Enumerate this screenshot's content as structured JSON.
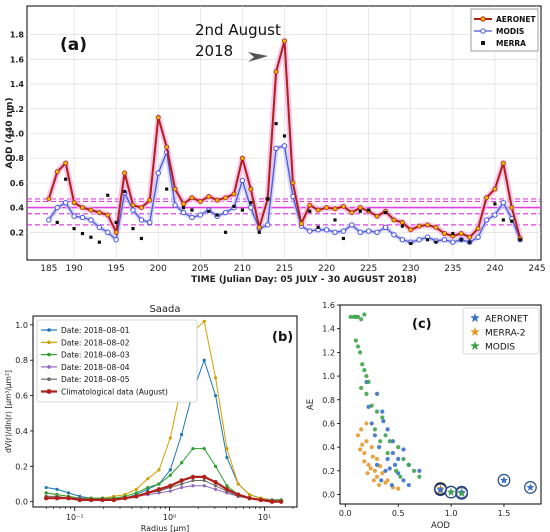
{
  "chart_data": [
    {
      "type": "line",
      "panel_label": "(a)",
      "annotation": [
        "2nd August",
        "2018"
      ],
      "ylabel": "AOD (440 nm)",
      "xlabel": "TIME (Julian Day: 05 JULY - 30 AUGUST 2018)",
      "xlim": [
        185,
        245
      ],
      "ylim": [
        0,
        2.0
      ],
      "x_ticks": [
        "190",
        "195",
        "200",
        "205",
        "210",
        "215",
        "220",
        "225",
        "230",
        "235",
        "240",
        "245"
      ],
      "y_ticks": [
        "0.2",
        "0.4",
        "0.6",
        "0.8",
        "1.0",
        "1.2",
        "1.4",
        "1.6",
        "1.8"
      ],
      "legend": [
        "AERONET",
        "MODIS",
        "MERRA"
      ],
      "legend_position": "top-right",
      "colors": {
        "aeronet": "#b0201a",
        "modis": "#4a55e0",
        "merra": "#111111",
        "band": "#e040e0"
      },
      "x": [
        187,
        188,
        189,
        190,
        191,
        192,
        193,
        194,
        195,
        196,
        197,
        198,
        199,
        200,
        201,
        202,
        203,
        204,
        205,
        206,
        207,
        208,
        209,
        210,
        211,
        212,
        213,
        214,
        215,
        216,
        217,
        218,
        219,
        220,
        221,
        222,
        223,
        224,
        225,
        226,
        227,
        228,
        229,
        230,
        231,
        232,
        233,
        234,
        235,
        236,
        237,
        238,
        239,
        240,
        241,
        242,
        243
      ],
      "series": [
        {
          "name": "AERONET",
          "values": [
            0.47,
            0.69,
            0.76,
            0.44,
            0.4,
            0.38,
            0.36,
            0.34,
            0.2,
            0.68,
            0.42,
            0.4,
            0.46,
            1.13,
            0.89,
            0.55,
            0.43,
            0.48,
            0.45,
            0.49,
            0.46,
            0.48,
            0.51,
            0.8,
            0.55,
            0.24,
            0.47,
            1.5,
            1.75,
            0.6,
            0.27,
            0.42,
            0.38,
            0.4,
            0.39,
            0.41,
            0.36,
            0.4,
            0.37,
            0.33,
            0.37,
            0.3,
            0.28,
            0.22,
            0.25,
            0.26,
            0.24,
            0.19,
            0.17,
            0.19,
            0.16,
            0.23,
            0.48,
            0.55,
            0.76,
            0.4,
            0.15
          ]
        },
        {
          "name": "MODIS",
          "values": [
            0.3,
            0.4,
            0.44,
            0.33,
            0.32,
            0.3,
            0.24,
            0.2,
            0.14,
            0.52,
            0.38,
            0.3,
            0.28,
            0.68,
            0.85,
            0.42,
            0.36,
            0.32,
            0.34,
            0.38,
            0.33,
            0.36,
            0.4,
            0.62,
            0.4,
            0.23,
            0.26,
            0.88,
            0.9,
            0.49,
            0.25,
            0.21,
            0.22,
            0.22,
            0.2,
            0.21,
            0.26,
            0.2,
            0.21,
            0.2,
            0.24,
            0.18,
            0.14,
            0.12,
            0.14,
            0.16,
            0.13,
            0.14,
            0.12,
            0.14,
            0.12,
            0.16,
            0.3,
            0.34,
            0.44,
            0.31,
            0.14
          ]
        },
        {
          "name": "MERRA",
          "values": [
            null,
            0.28,
            0.63,
            0.23,
            0.19,
            0.16,
            0.12,
            0.5,
            0.28,
            0.53,
            0.23,
            0.15,
            null,
            null,
            0.55,
            null,
            0.4,
            0.38,
            null,
            0.37,
            0.34,
            0.2,
            0.41,
            0.38,
            0.44,
            0.2,
            0.47,
            1.08,
            0.98,
            null,
            null,
            0.37,
            0.24,
            null,
            0.3,
            0.15,
            null,
            0.37,
            0.38,
            null,
            0.36,
            null,
            0.25,
            0.11,
            null,
            0.14,
            0.12,
            null,
            0.19,
            0.14,
            0.12,
            null,
            null,
            0.43,
            0.3,
            0.29,
            0.14
          ]
        }
      ],
      "mean_lines": {
        "solid": 0.4,
        "dashed": [
          0.45,
          0.35,
          0.26,
          0.47
        ]
      }
    },
    {
      "type": "line",
      "title": "Saada",
      "panel_label": "(b)",
      "xlabel": "Radius [μm]",
      "ylabel": "dV(r)/dln(r) [μm³/μm²]",
      "xscale": "log",
      "xlim": [
        0.04,
        20
      ],
      "ylim": [
        -0.03,
        1.05
      ],
      "x_ticks": [
        "10⁻¹",
        "10⁰",
        "10¹"
      ],
      "y_ticks": [
        "0.0",
        "0.2",
        "0.4",
        "0.6",
        "0.8",
        "1.0"
      ],
      "legend_position": "top-left",
      "x": [
        0.05,
        0.065,
        0.086,
        0.113,
        0.149,
        0.196,
        0.258,
        0.339,
        0.446,
        0.588,
        0.773,
        1.018,
        1.339,
        1.762,
        2.319,
        3.052,
        4.016,
        5.285,
        6.955,
        9.152,
        12.044,
        15.0
      ],
      "series": [
        {
          "name": "Date: 2018–08–01",
          "color": "#1f77b4",
          "values": [
            0.08,
            0.07,
            0.05,
            0.03,
            0.02,
            0.02,
            0.02,
            0.02,
            0.04,
            0.07,
            0.1,
            0.18,
            0.38,
            0.62,
            0.8,
            0.6,
            0.25,
            0.1,
            0.04,
            0.02,
            0.01,
            0.01
          ]
        },
        {
          "name": "Date: 2018–08–02",
          "color": "#d0a000",
          "values": [
            0.05,
            0.04,
            0.03,
            0.02,
            0.02,
            0.02,
            0.03,
            0.04,
            0.07,
            0.13,
            0.18,
            0.36,
            0.66,
            0.96,
            1.02,
            0.7,
            0.3,
            0.1,
            0.04,
            0.02,
            0.01,
            0.01
          ]
        },
        {
          "name": "Date: 2018–08–03",
          "color": "#2ca02c",
          "values": [
            0.05,
            0.04,
            0.03,
            0.02,
            0.02,
            0.02,
            0.02,
            0.03,
            0.05,
            0.08,
            0.1,
            0.15,
            0.22,
            0.3,
            0.3,
            0.2,
            0.09,
            0.04,
            0.02,
            0.01,
            0.01,
            0.01
          ]
        },
        {
          "name": "Date: 2018–08–04",
          "color": "#9467bd",
          "values": [
            0.03,
            0.03,
            0.02,
            0.02,
            0.01,
            0.01,
            0.01,
            0.02,
            0.03,
            0.04,
            0.05,
            0.06,
            0.08,
            0.09,
            0.09,
            0.07,
            0.05,
            0.03,
            0.02,
            0.01,
            0.01,
            0.0
          ]
        },
        {
          "name": "Date: 2018–08–05",
          "color": "#6e6e6e",
          "values": [
            0.03,
            0.03,
            0.02,
            0.02,
            0.01,
            0.01,
            0.01,
            0.02,
            0.03,
            0.05,
            0.06,
            0.08,
            0.1,
            0.12,
            0.12,
            0.09,
            0.06,
            0.03,
            0.02,
            0.01,
            0.01,
            0.0
          ]
        },
        {
          "name": "Climatological data (August)",
          "color": "#b0201a",
          "values": [
            0.02,
            0.02,
            0.02,
            0.01,
            0.01,
            0.01,
            0.01,
            0.02,
            0.03,
            0.05,
            0.07,
            0.09,
            0.12,
            0.14,
            0.14,
            0.11,
            0.07,
            0.04,
            0.02,
            0.01,
            0.0,
            0.0
          ]
        }
      ]
    },
    {
      "type": "scatter",
      "panel_label": "(c)",
      "xlabel": "AOD",
      "ylabel": "AE",
      "xlim": [
        -0.05,
        1.85
      ],
      "ylim": [
        -0.08,
        1.6
      ],
      "x_ticks": [
        "0.0",
        "0.5",
        "1.0",
        "1.5"
      ],
      "y_ticks": [
        "0.0",
        "0.2",
        "0.4",
        "0.6",
        "0.8",
        "1.0",
        "1.2",
        "1.4",
        "1.6"
      ],
      "legend": [
        "AERONET",
        "MERRA-2",
        "MODIS"
      ],
      "legend_position": "top-right",
      "series": [
        {
          "name": "AERONET",
          "color": "#3a6fc9",
          "points": [
            [
              0.3,
              0.85
            ],
            [
              0.35,
              0.7
            ],
            [
              0.4,
              0.55
            ],
            [
              0.45,
              0.45
            ],
            [
              0.5,
              0.3
            ],
            [
              0.3,
              0.25
            ],
            [
              0.38,
              0.2
            ],
            [
              0.42,
              0.22
            ],
            [
              0.5,
              0.18
            ],
            [
              0.55,
              0.12
            ],
            [
              0.6,
              0.08
            ],
            [
              0.45,
              0.35
            ],
            [
              0.25,
              0.6
            ],
            [
              0.2,
              0.95
            ],
            [
              0.32,
              0.4
            ],
            [
              0.47,
              0.25
            ],
            [
              0.36,
              0.62
            ],
            [
              0.28,
              0.5
            ],
            [
              0.55,
              0.38
            ],
            [
              0.4,
              0.3
            ],
            [
              0.6,
              0.25
            ],
            [
              0.7,
              0.2
            ],
            [
              0.22,
              0.74
            ],
            [
              0.34,
              0.12
            ],
            [
              0.44,
              0.08
            ]
          ],
          "circled": [
            [
              0.9,
              0.04
            ],
            [
              1.0,
              0.02
            ],
            [
              1.1,
              0.02
            ],
            [
              1.5,
              0.12
            ],
            [
              1.75,
              0.06
            ]
          ]
        },
        {
          "name": "MERRA-2",
          "color": "#e59a2e",
          "points": [
            [
              0.15,
              0.55
            ],
            [
              0.2,
              0.45
            ],
            [
              0.25,
              0.4
            ],
            [
              0.18,
              0.35
            ],
            [
              0.3,
              0.3
            ],
            [
              0.22,
              0.25
            ],
            [
              0.28,
              0.2
            ],
            [
              0.35,
              0.18
            ],
            [
              0.4,
              0.12
            ],
            [
              0.12,
              0.5
            ],
            [
              0.16,
              0.42
            ],
            [
              0.26,
              0.32
            ],
            [
              0.33,
              0.24
            ],
            [
              0.2,
              0.6
            ],
            [
              0.18,
              0.28
            ],
            [
              0.24,
              0.22
            ],
            [
              0.3,
              0.15
            ],
            [
              0.38,
              0.1
            ],
            [
              0.45,
              0.06
            ],
            [
              0.14,
              0.38
            ],
            [
              0.21,
              0.18
            ],
            [
              0.27,
              0.12
            ],
            [
              0.32,
              0.08
            ],
            [
              0.5,
              0.05
            ],
            [
              0.9,
              0.03
            ]
          ],
          "circled": [
            [
              0.9,
              0.05
            ]
          ]
        },
        {
          "name": "MODIS",
          "color": "#3fa34d",
          "points": [
            [
              0.05,
              1.5
            ],
            [
              0.08,
              1.5
            ],
            [
              0.1,
              1.5
            ],
            [
              0.12,
              1.5
            ],
            [
              0.15,
              1.48
            ],
            [
              0.18,
              1.52
            ],
            [
              0.1,
              1.3
            ],
            [
              0.12,
              1.25
            ],
            [
              0.14,
              1.2
            ],
            [
              0.16,
              1.1
            ],
            [
              0.18,
              1.05
            ],
            [
              0.2,
              1.0
            ],
            [
              0.22,
              0.95
            ],
            [
              0.15,
              0.9
            ],
            [
              0.2,
              0.85
            ],
            [
              0.25,
              0.75
            ],
            [
              0.3,
              0.7
            ],
            [
              0.35,
              0.65
            ],
            [
              0.28,
              0.55
            ],
            [
              0.38,
              0.5
            ],
            [
              0.42,
              0.45
            ],
            [
              0.5,
              0.4
            ],
            [
              0.55,
              0.3
            ],
            [
              0.6,
              0.25
            ],
            [
              0.65,
              0.2
            ],
            [
              0.7,
              0.15
            ],
            [
              0.48,
              0.2
            ],
            [
              0.52,
              0.15
            ],
            [
              0.4,
              0.35
            ],
            [
              0.33,
              0.45
            ]
          ],
          "circled": [
            [
              1.0,
              0.02
            ],
            [
              1.1,
              0.01
            ]
          ]
        }
      ]
    }
  ]
}
